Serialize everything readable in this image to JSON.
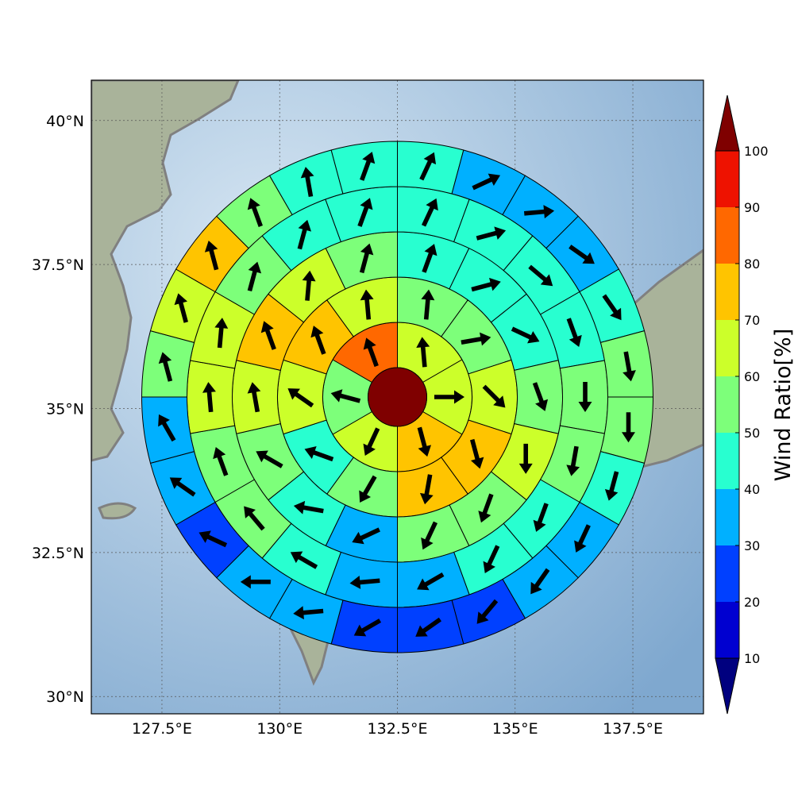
{
  "chart_data": {
    "type": "polar-sector-map",
    "map_extent": {
      "lon": [
        126.0,
        139.0
      ],
      "lat": [
        29.7,
        40.7
      ]
    },
    "center": {
      "lon": 132.5,
      "lat": 35.2
    },
    "x_ticks": [
      {
        "value": 127.5,
        "label": "127.5°E"
      },
      {
        "value": 130.0,
        "label": "130°E"
      },
      {
        "value": 132.5,
        "label": "132.5°E"
      },
      {
        "value": 135.0,
        "label": "135°E"
      },
      {
        "value": 137.5,
        "label": "137.5°E"
      }
    ],
    "y_ticks": [
      {
        "value": 40.0,
        "label": "40°N"
      },
      {
        "value": 37.5,
        "label": "37.5°N"
      },
      {
        "value": 35.0,
        "label": "35°N"
      },
      {
        "value": 32.5,
        "label": "32.5°N"
      },
      {
        "value": 30.0,
        "label": "30°N"
      }
    ],
    "grid": true,
    "center_value": 100,
    "rings": [
      {
        "sectors": [
          {
            "value": 60,
            "dir": 355
          },
          {
            "value": 60,
            "dir": 90
          },
          {
            "value": 75,
            "dir": 165
          },
          {
            "value": 65,
            "dir": 205
          },
          {
            "value": 55,
            "dir": 285
          },
          {
            "value": 85,
            "dir": 340
          }
        ]
      },
      {
        "sectors": [
          {
            "value": 55,
            "dir": 5
          },
          {
            "value": 55,
            "dir": 80
          },
          {
            "value": 65,
            "dir": 135
          },
          {
            "value": 75,
            "dir": 165
          },
          {
            "value": 75,
            "dir": 190
          },
          {
            "value": 55,
            "dir": 210
          },
          {
            "value": 45,
            "dir": 290
          },
          {
            "value": 65,
            "dir": 305
          },
          {
            "value": 75,
            "dir": 340
          },
          {
            "value": 65,
            "dir": 355
          }
        ]
      },
      {
        "sectors": [
          {
            "value": 45,
            "dir": 20
          },
          {
            "value": 45,
            "dir": 75
          },
          {
            "value": 45,
            "dir": 115
          },
          {
            "value": 55,
            "dir": 160
          },
          {
            "value": 65,
            "dir": 180
          },
          {
            "value": 55,
            "dir": 200
          },
          {
            "value": 55,
            "dir": 205
          },
          {
            "value": 35,
            "dir": 245
          },
          {
            "value": 45,
            "dir": 280
          },
          {
            "value": 55,
            "dir": 300
          },
          {
            "value": 65,
            "dir": 350
          },
          {
            "value": 75,
            "dir": 340
          },
          {
            "value": 65,
            "dir": 5
          },
          {
            "value": 55,
            "dir": 15
          }
        ]
      },
      {
        "sectors": [
          {
            "value": 45,
            "dir": 25
          },
          {
            "value": 45,
            "dir": 75
          },
          {
            "value": 45,
            "dir": 130
          },
          {
            "value": 45,
            "dir": 160
          },
          {
            "value": 55,
            "dir": 180
          },
          {
            "value": 55,
            "dir": 190
          },
          {
            "value": 45,
            "dir": 200
          },
          {
            "value": 45,
            "dir": 205
          },
          {
            "value": 35,
            "dir": 240
          },
          {
            "value": 35,
            "dir": 265
          },
          {
            "value": 45,
            "dir": 300
          },
          {
            "value": 55,
            "dir": 320
          },
          {
            "value": 55,
            "dir": 340
          },
          {
            "value": 65,
            "dir": 355
          },
          {
            "value": 65,
            "dir": 5
          },
          {
            "value": 55,
            "dir": 15
          },
          {
            "value": 45,
            "dir": 15
          },
          {
            "value": 45,
            "dir": 20
          }
        ]
      },
      {
        "sectors": [
          {
            "value": 45,
            "dir": 25
          },
          {
            "value": 35,
            "dir": 65
          },
          {
            "value": 35,
            "dir": 85
          },
          {
            "value": 35,
            "dir": 125
          },
          {
            "value": 45,
            "dir": 145
          },
          {
            "value": 55,
            "dir": 170
          },
          {
            "value": 55,
            "dir": 180
          },
          {
            "value": 45,
            "dir": 195
          },
          {
            "value": 35,
            "dir": 205
          },
          {
            "value": 35,
            "dir": 215
          },
          {
            "value": 25,
            "dir": 220
          },
          {
            "value": 25,
            "dir": 235
          },
          {
            "value": 25,
            "dir": 240
          },
          {
            "value": 35,
            "dir": 265
          },
          {
            "value": 35,
            "dir": 270
          },
          {
            "value": 25,
            "dir": 295
          },
          {
            "value": 35,
            "dir": 305
          },
          {
            "value": 35,
            "dir": 330
          },
          {
            "value": 55,
            "dir": 345
          },
          {
            "value": 65,
            "dir": 345
          },
          {
            "value": 75,
            "dir": 345
          },
          {
            "value": 55,
            "dir": 340
          },
          {
            "value": 45,
            "dir": 350
          },
          {
            "value": 45,
            "dir": 20
          }
        ]
      }
    ],
    "colorbar": {
      "title": "Wind Ratio[%]",
      "ticks": [
        "10",
        "20",
        "30",
        "40",
        "50",
        "60",
        "70",
        "80",
        "90",
        "100"
      ],
      "under_color": "#00007f",
      "over_color": "#7f0000",
      "colors": [
        "#0000d0",
        "#0040ff",
        "#00b0ff",
        "#28ffd0",
        "#7dff7a",
        "#ccff2a",
        "#ffc400",
        "#ff6800",
        "#ee1200"
      ]
    },
    "land_color": "#a9b39a",
    "sea_color": "#a9c8e0",
    "coast_color": "#808080"
  }
}
